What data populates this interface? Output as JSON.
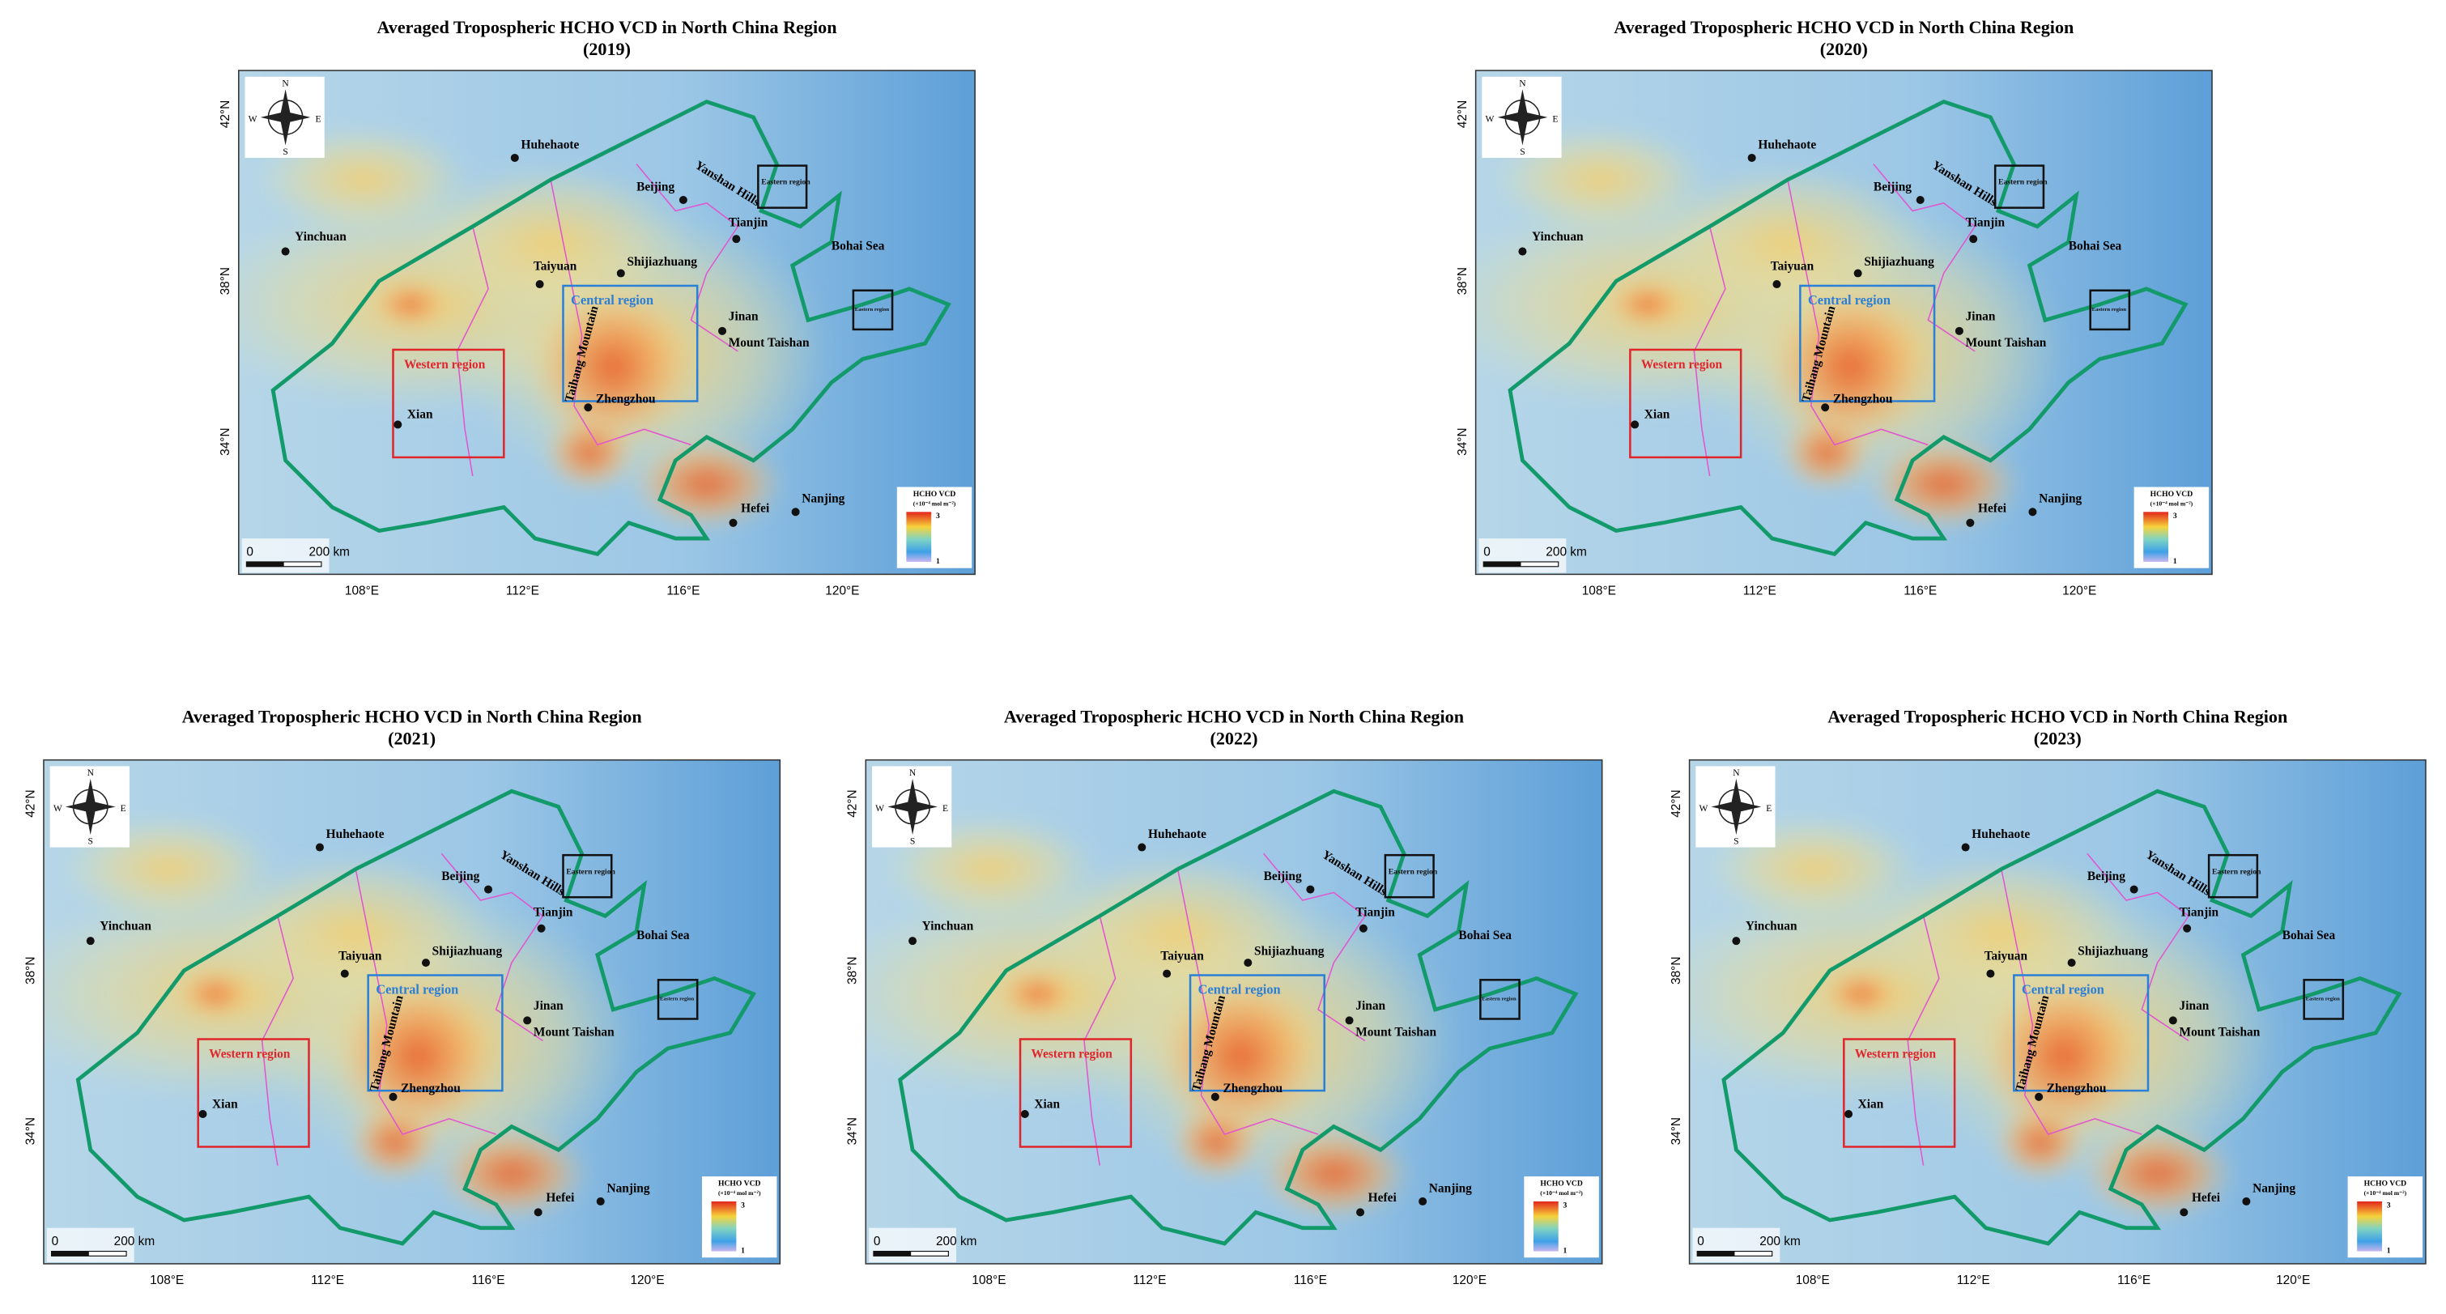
{
  "panels": [
    {
      "title": "Averaged Tropospheric HCHO VCD in North China Region",
      "year": "(2019)"
    },
    {
      "title": "Averaged Tropospheric HCHO VCD in North China Region",
      "year": "(2020)"
    },
    {
      "title": "Averaged Tropospheric HCHO VCD in North China Region",
      "year": "(2021)"
    },
    {
      "title": "Averaged Tropospheric HCHO VCD in North China Region",
      "year": "(2022)"
    },
    {
      "title": "Averaged Tropospheric HCHO VCD in North China Region",
      "year": "(2023)"
    }
  ],
  "map": {
    "lat_labels": [
      "42°N",
      "38°N",
      "34°N"
    ],
    "lon_labels": [
      "108°E",
      "112°E",
      "116°E",
      "120°E"
    ],
    "cities": [
      "Huhehaote",
      "Beijing",
      "Tianjin",
      "Yinchuan",
      "Taiyuan",
      "Shijiazhuang",
      "Jinan",
      "Zhengzhou",
      "Xian",
      "Hefei",
      "Nanjing"
    ],
    "features": [
      "Mount Taishan",
      "Bohai Sea",
      "Yanshan Hills",
      "Taihang Mountain"
    ],
    "regions": {
      "western": "Western region",
      "central": "Central region",
      "eastern": "Eastern region"
    },
    "compass": [
      "N",
      "S",
      "W",
      "E"
    ],
    "scale_bar": [
      "0",
      "200 km"
    ],
    "legend": {
      "title": "HCHO VCD",
      "unit": "(×10⁻⁴ mol m⁻²)",
      "max": "3",
      "min": "1"
    }
  }
}
